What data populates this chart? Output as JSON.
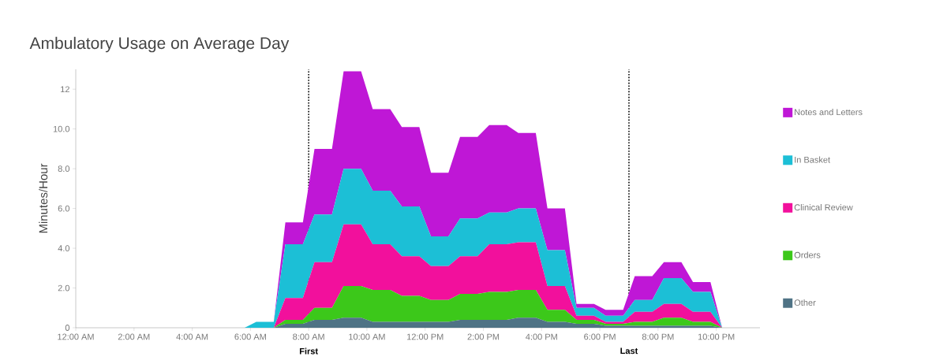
{
  "chart_data": {
    "type": "area",
    "stacked": true,
    "title": "Ambulatory Usage on Average Day",
    "ylabel": "Minutes/Hour",
    "x": [
      5.8,
      6.2,
      6.8,
      7.2,
      7.8,
      8.2,
      8.8,
      9.2,
      9.8,
      10.2,
      10.8,
      11.2,
      11.8,
      12.2,
      12.8,
      13.2,
      13.8,
      14.2,
      14.8,
      15.2,
      15.8,
      16.2,
      16.8,
      17.2,
      17.8,
      18.2,
      18.8,
      19.2,
      19.8,
      20.2,
      20.8,
      21.2,
      21.8,
      22.2
    ],
    "series": [
      {
        "name": "Other",
        "color": "#4f7385",
        "values": [
          0,
          0,
          0,
          0.2,
          0.2,
          0.4,
          0.4,
          0.5,
          0.5,
          0.3,
          0.3,
          0.3,
          0.3,
          0.3,
          0.3,
          0.4,
          0.4,
          0.4,
          0.4,
          0.5,
          0.5,
          0.3,
          0.3,
          0.2,
          0.2,
          0.1,
          0.1,
          0.1,
          0.1,
          0.1,
          0.1,
          0.1,
          0.1,
          0
        ]
      },
      {
        "name": "Orders",
        "color": "#3cc81a",
        "values": [
          0,
          0,
          0,
          0.2,
          0.2,
          0.6,
          0.6,
          1.6,
          1.6,
          1.6,
          1.6,
          1.3,
          1.3,
          1.1,
          1.1,
          1.3,
          1.3,
          1.4,
          1.4,
          1.4,
          1.4,
          0.6,
          0.6,
          0.2,
          0.2,
          0.1,
          0.1,
          0.2,
          0.2,
          0.4,
          0.4,
          0.2,
          0.2,
          0
        ]
      },
      {
        "name": "Clinical Review",
        "color": "#f2109c",
        "values": [
          0,
          0,
          0,
          1.1,
          1.1,
          2.3,
          2.3,
          3.1,
          3.1,
          2.3,
          2.3,
          2.0,
          2.0,
          1.7,
          1.7,
          1.9,
          1.9,
          2.4,
          2.4,
          2.4,
          2.4,
          1.2,
          1.2,
          0.2,
          0.2,
          0.1,
          0.1,
          0.5,
          0.5,
          0.7,
          0.7,
          0.5,
          0.5,
          0
        ]
      },
      {
        "name": "In Basket",
        "color": "#1cbfd6",
        "values": [
          0,
          0.3,
          0.3,
          2.7,
          2.7,
          2.4,
          2.4,
          2.8,
          2.8,
          2.7,
          2.7,
          2.5,
          2.5,
          1.5,
          1.5,
          1.9,
          1.9,
          1.6,
          1.6,
          1.7,
          1.7,
          1.8,
          1.8,
          0.4,
          0.4,
          0.3,
          0.3,
          0.6,
          0.6,
          1.3,
          1.3,
          1.0,
          1.0,
          0
        ]
      },
      {
        "name": "Notes and Letters",
        "color": "#bf17d6",
        "values": [
          0,
          0,
          0,
          1.1,
          1.1,
          3.3,
          3.3,
          4.9,
          4.9,
          4.1,
          4.1,
          4.0,
          4.0,
          3.2,
          3.2,
          4.1,
          4.1,
          4.4,
          4.4,
          3.8,
          3.8,
          2.1,
          2.1,
          0.2,
          0.2,
          0.3,
          0.3,
          1.2,
          1.2,
          0.8,
          0.8,
          0.5,
          0.5,
          0
        ]
      }
    ],
    "xlim": [
      0,
      23.5
    ],
    "xticks": [
      {
        "value": 0,
        "label": "12:00 AM"
      },
      {
        "value": 2,
        "label": "2:00 AM"
      },
      {
        "value": 4,
        "label": "4:00 AM"
      },
      {
        "value": 6,
        "label": "6:00 AM"
      },
      {
        "value": 8,
        "label": "8:00 AM"
      },
      {
        "value": 10,
        "label": "10:00 AM"
      },
      {
        "value": 12,
        "label": "12:00 PM"
      },
      {
        "value": 14,
        "label": "2:00 PM"
      },
      {
        "value": 16,
        "label": "4:00 PM"
      },
      {
        "value": 18,
        "label": "6:00 PM"
      },
      {
        "value": 20,
        "label": "8:00 PM"
      },
      {
        "value": 22,
        "label": "10:00 PM"
      }
    ],
    "ylim": [
      0,
      13
    ],
    "yticks": [
      0,
      {
        "value": 2,
        "label": "2.0"
      },
      {
        "value": 4,
        "label": "4.0"
      },
      {
        "value": 6,
        "label": "6.0"
      },
      {
        "value": 8,
        "label": "8.0"
      },
      {
        "value": 10,
        "label": "10.0"
      },
      12
    ],
    "ref_lines": [
      {
        "axis": "x",
        "value": 8,
        "label": "First",
        "color": "#000000",
        "line_style": "dotted"
      },
      {
        "axis": "x",
        "value": 19,
        "label": "Last",
        "color": "#000000",
        "line_style": "dotted"
      }
    ],
    "legend": "right"
  }
}
